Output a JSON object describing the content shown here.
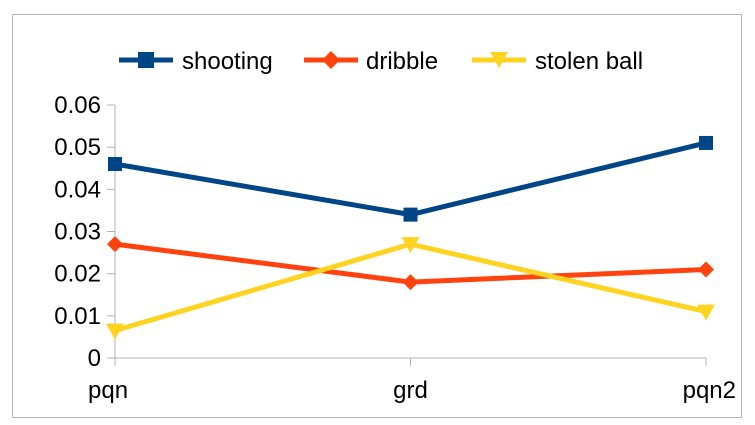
{
  "chart_data": {
    "type": "line",
    "title": "",
    "xlabel": "",
    "ylabel": "",
    "categories": [
      "pqn",
      "grd",
      "pqn2"
    ],
    "ylim": [
      0,
      0.06
    ],
    "yticks": [
      "0.06",
      "0.05",
      "0.04",
      "0.03",
      "0.02",
      "0.01",
      "0"
    ],
    "grid": false,
    "legend_position": "top",
    "series": [
      {
        "name": "shooting",
        "values": [
          0.046,
          0.034,
          0.051
        ],
        "color": "#004586",
        "marker": "square"
      },
      {
        "name": "dribble",
        "values": [
          0.027,
          0.018,
          0.021
        ],
        "color": "#ff420e",
        "marker": "diamond"
      },
      {
        "name": "stolen ball",
        "values": [
          0.0065,
          0.027,
          0.011
        ],
        "color": "#ffd320",
        "marker": "triangle-down"
      }
    ]
  }
}
